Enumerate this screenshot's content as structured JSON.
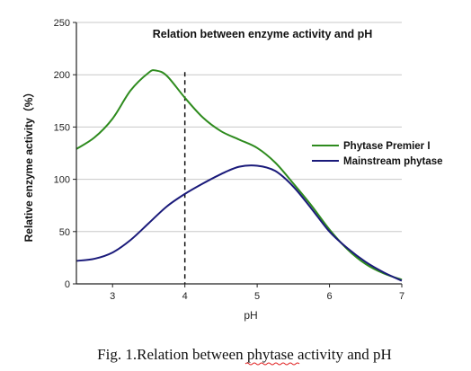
{
  "chart_data": {
    "type": "line",
    "title": "Relation between enzyme activity and pH",
    "xlabel": "pH",
    "ylabel": "Relative enzyme activity（%）",
    "xlim": [
      2.5,
      7.0
    ],
    "ylim": [
      0,
      250
    ],
    "x_ticks": [
      "3",
      "4",
      "5",
      "6",
      "7"
    ],
    "y_ticks": [
      "0",
      "50",
      "100",
      "150",
      "200",
      "250"
    ],
    "grid": "horizontal",
    "legend_position": "right",
    "reference_line_x": 4,
    "series": [
      {
        "name": "Phytase Premier I",
        "color": "#2e8b1e",
        "x": [
          2.5,
          2.75,
          3.0,
          3.25,
          3.5,
          3.6,
          3.75,
          4.0,
          4.25,
          4.5,
          4.75,
          5.0,
          5.25,
          5.5,
          5.75,
          6.0,
          6.25,
          6.5,
          6.75,
          7.0
        ],
        "values": [
          129,
          140,
          158,
          185,
          202,
          204,
          199,
          178,
          159,
          146,
          138,
          130,
          116,
          96,
          75,
          52,
          33,
          19,
          10,
          4
        ]
      },
      {
        "name": "Mainstream phytase",
        "color": "#1a1a7a",
        "x": [
          2.5,
          2.75,
          3.0,
          3.25,
          3.5,
          3.75,
          4.0,
          4.25,
          4.5,
          4.75,
          5.0,
          5.25,
          5.5,
          5.75,
          6.0,
          6.25,
          6.5,
          6.75,
          7.0
        ],
        "values": [
          22,
          24,
          30,
          42,
          58,
          74,
          86,
          96,
          105,
          112,
          113,
          108,
          93,
          72,
          50,
          34,
          21,
          11,
          3
        ]
      }
    ]
  },
  "caption": {
    "text": "Fig. 1.Relation between phytase activity and pH"
  }
}
